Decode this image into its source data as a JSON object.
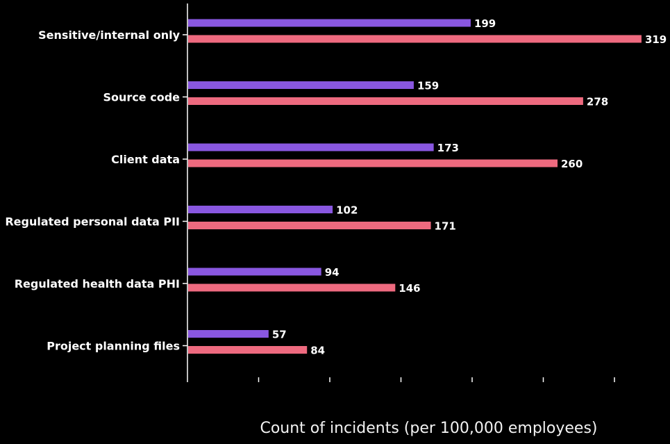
{
  "chart_data": {
    "type": "bar",
    "orientation": "horizontal",
    "categories": [
      "Sensitive/internal only",
      "Source code",
      "Client data",
      "Regulated personal data PII",
      "Regulated health data PHI",
      "Project planning files"
    ],
    "series": [
      {
        "values": [
          199,
          159,
          173,
          102,
          94,
          57
        ],
        "color": "#8957e0"
      },
      {
        "values": [
          319,
          278,
          260,
          171,
          146,
          84
        ],
        "color": "#ee6a7f"
      }
    ],
    "xlabel": "Count of incidents (per 100,000 employees)",
    "xlim": [
      0,
      340
    ],
    "xticks": [
      0,
      50,
      100,
      150,
      200,
      250,
      300
    ],
    "grid": false,
    "legend": "none"
  }
}
